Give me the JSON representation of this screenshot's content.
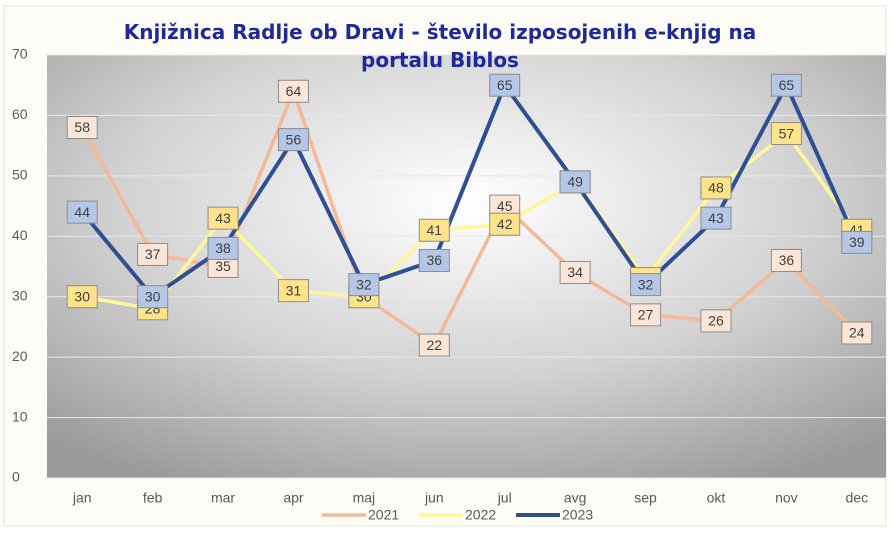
{
  "chart_data": {
    "type": "line",
    "title": "Knjižnica Radlje ob Dravi - število izposojenih e-knjig na portalu Biblos",
    "categories": [
      "jan",
      "feb",
      "mar",
      "apr",
      "maj",
      "jun",
      "jul",
      "avg",
      "sep",
      "okt",
      "nov",
      "dec"
    ],
    "series": [
      {
        "name": "2021",
        "color": "#f4b996",
        "label_fill": "#fbe5d6",
        "values": [
          58,
          37,
          35,
          64,
          30,
          22,
          45,
          34,
          27,
          26,
          36,
          24
        ]
      },
      {
        "name": "2022",
        "color": "#fff59a",
        "label_fill": "#ffe38a",
        "values": [
          30,
          28,
          43,
          31,
          30,
          41,
          42,
          49,
          33,
          48,
          57,
          41
        ]
      },
      {
        "name": "2023",
        "color": "#2f4f93",
        "label_fill": "#b4c7e7",
        "values": [
          44,
          30,
          38,
          56,
          32,
          36,
          65,
          49,
          32,
          43,
          65,
          39
        ]
      }
    ],
    "ylim": [
      0,
      70
    ],
    "yticks": [
      0,
      10,
      20,
      30,
      40,
      50,
      60,
      70
    ],
    "grid": true,
    "legend": "bottom"
  }
}
